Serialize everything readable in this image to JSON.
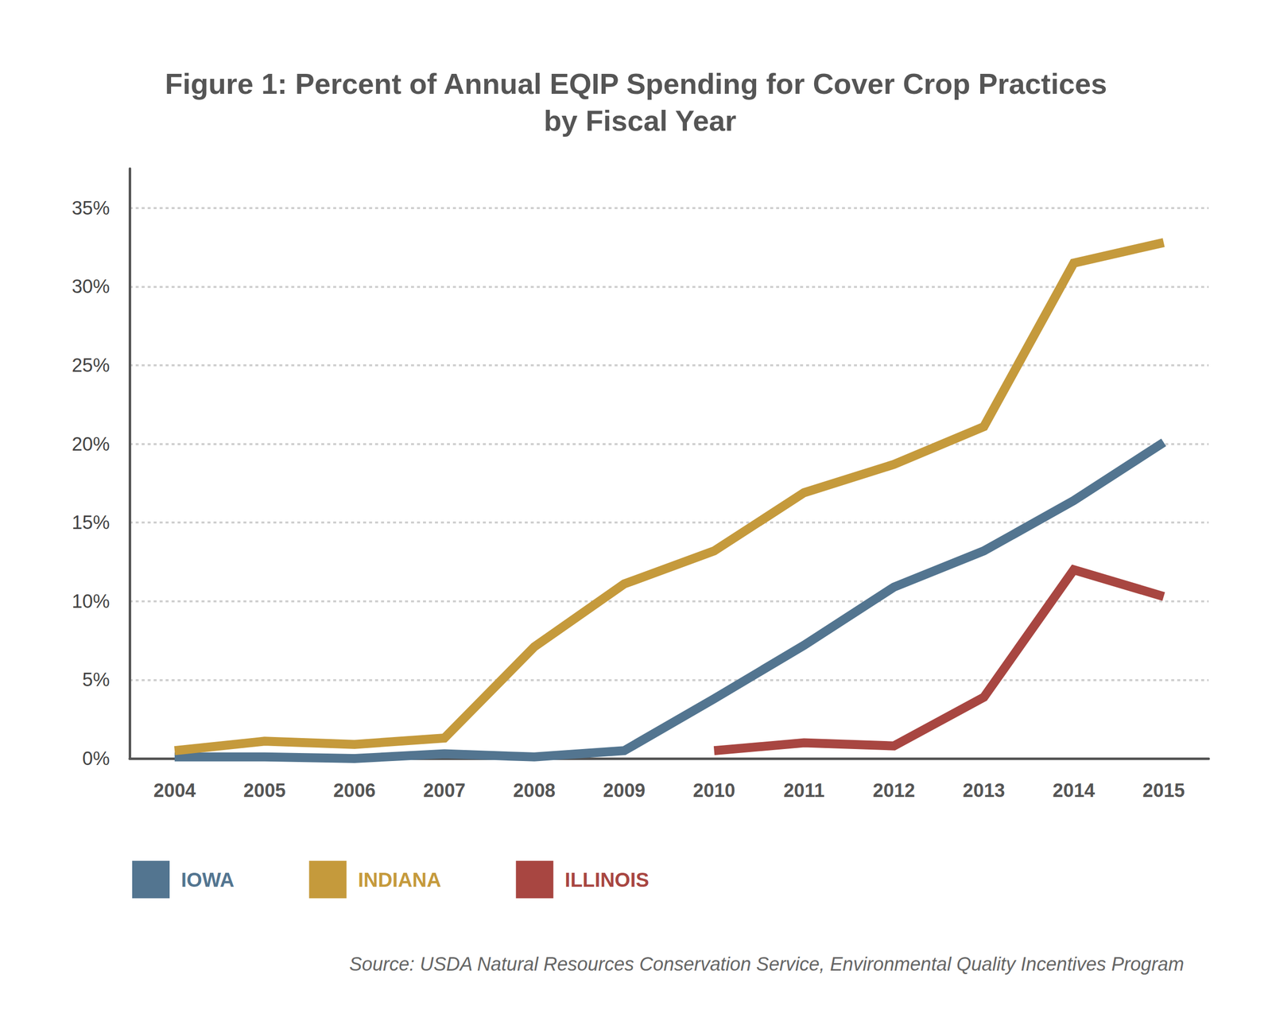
{
  "chart_data": {
    "type": "line",
    "title": "Figure 1: Percent of Annual EQIP Spending for Cover Crop Practices by Fiscal Year",
    "source": "Source: USDA Natural Resources Conservation Service, Environmental Quality Incentives Program",
    "categories": [
      "2004",
      "2005",
      "2006",
      "2007",
      "2008",
      "2009",
      "2010",
      "2011",
      "2012",
      "2013",
      "2014",
      "2015"
    ],
    "series": [
      {
        "name": "IOWA",
        "color": "#537590",
        "values": [
          0.1,
          0.1,
          0.0,
          0.3,
          0.1,
          0.5,
          3.8,
          7.2,
          10.9,
          13.2,
          16.4,
          20.1
        ]
      },
      {
        "name": "INDIANA",
        "color": "#c59a3c",
        "values": [
          0.5,
          1.1,
          0.9,
          1.3,
          7.1,
          11.1,
          13.2,
          16.9,
          18.7,
          21.1,
          31.5,
          32.8
        ]
      },
      {
        "name": "ILLINOIS",
        "color": "#a84641",
        "values": [
          null,
          null,
          null,
          null,
          null,
          null,
          0.5,
          1.0,
          0.8,
          3.9,
          12.0,
          10.3
        ]
      }
    ],
    "ylim": [
      0,
      37.5
    ],
    "yticks": [
      {
        "value": 0,
        "label": "0%"
      },
      {
        "value": 5,
        "label": "5%"
      },
      {
        "value": 10,
        "label": "10%"
      },
      {
        "value": 15,
        "label": "15%"
      },
      {
        "value": 20,
        "label": "20%"
      },
      {
        "value": 25,
        "label": "25%"
      },
      {
        "value": 30,
        "label": "30%"
      },
      {
        "value": 35,
        "label": "35%"
      }
    ],
    "grid": true,
    "legend": "bottom-left"
  }
}
